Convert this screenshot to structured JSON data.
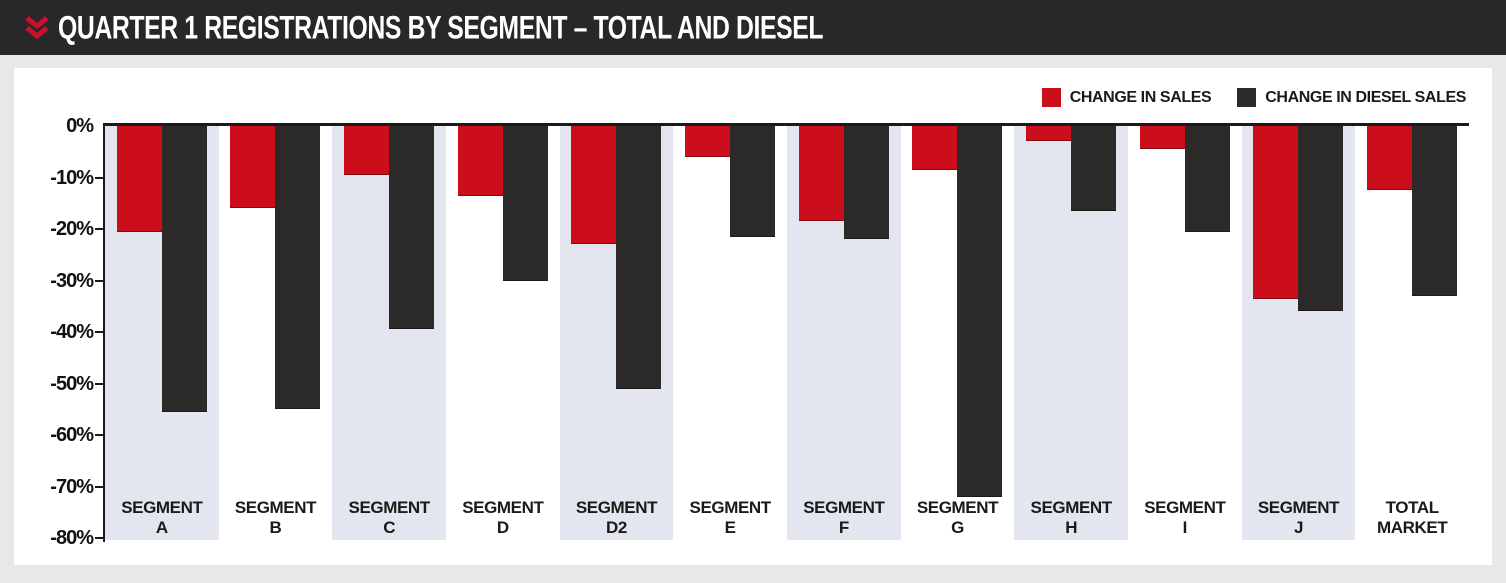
{
  "header": {
    "title": "QUARTER 1 REGISTRATIONS BY SEGMENT – TOTAL AND DIESEL",
    "chevron_icon": "double-chevron-down",
    "background": "#282828",
    "accent": "#c8102e"
  },
  "legend": [
    {
      "label": "CHANGE IN SALES",
      "color": "#cc0e1c"
    },
    {
      "label": "CHANGE IN DIESEL SALES",
      "color": "#2b2a29"
    }
  ],
  "chart_data": {
    "type": "bar",
    "title": "QUARTER 1 REGISTRATIONS BY SEGMENT – TOTAL AND DIESEL",
    "categories": [
      "SEGMENT A",
      "SEGMENT B",
      "SEGMENT C",
      "SEGMENT D",
      "SEGMENT D2",
      "SEGMENT E",
      "SEGMENT F",
      "SEGMENT G",
      "SEGMENT H",
      "SEGMENT I",
      "SEGMENT J",
      "TOTAL MARKET"
    ],
    "category_lines": [
      [
        "SEGMENT",
        "A"
      ],
      [
        "SEGMENT",
        "B"
      ],
      [
        "SEGMENT",
        "C"
      ],
      [
        "SEGMENT",
        "D"
      ],
      [
        "SEGMENT",
        "D2"
      ],
      [
        "SEGMENT",
        "E"
      ],
      [
        "SEGMENT",
        "F"
      ],
      [
        "SEGMENT",
        "G"
      ],
      [
        "SEGMENT",
        "H"
      ],
      [
        "SEGMENT",
        "I"
      ],
      [
        "SEGMENT",
        "J"
      ],
      [
        "TOTAL",
        "MARKET"
      ]
    ],
    "series": [
      {
        "name": "CHANGE IN SALES",
        "color": "#cc0e1c",
        "values": [
          -20.5,
          -16,
          -9.5,
          -13.5,
          -23,
          -6,
          -18.5,
          -8.5,
          -3,
          -4.5,
          -33.5,
          -12.5
        ]
      },
      {
        "name": "CHANGE IN DIESEL SALES",
        "color": "#2b2a29",
        "values": [
          -55.5,
          -55,
          -39.5,
          -30,
          -51,
          -21.5,
          -22,
          -72,
          -16.5,
          -20.5,
          -36,
          -33
        ]
      }
    ],
    "xlabel": "",
    "ylabel": "",
    "ylim": [
      -80,
      0
    ],
    "y_ticks": [
      {
        "v": 0,
        "label": "0%"
      },
      {
        "v": -10,
        "label": "-10%"
      },
      {
        "v": -20,
        "label": "-20%"
      },
      {
        "v": -30,
        "label": "-30%"
      },
      {
        "v": -40,
        "label": "-40%"
      },
      {
        "v": -50,
        "label": "-50%"
      },
      {
        "v": -60,
        "label": "-60%"
      },
      {
        "v": -70,
        "label": "-70%"
      },
      {
        "v": -80,
        "label": "-80%"
      }
    ],
    "grid": false,
    "legend_position": "top-right",
    "stripe_color": "#e3e6ee",
    "stripe_pattern": "alternating columns, first column shaded"
  }
}
